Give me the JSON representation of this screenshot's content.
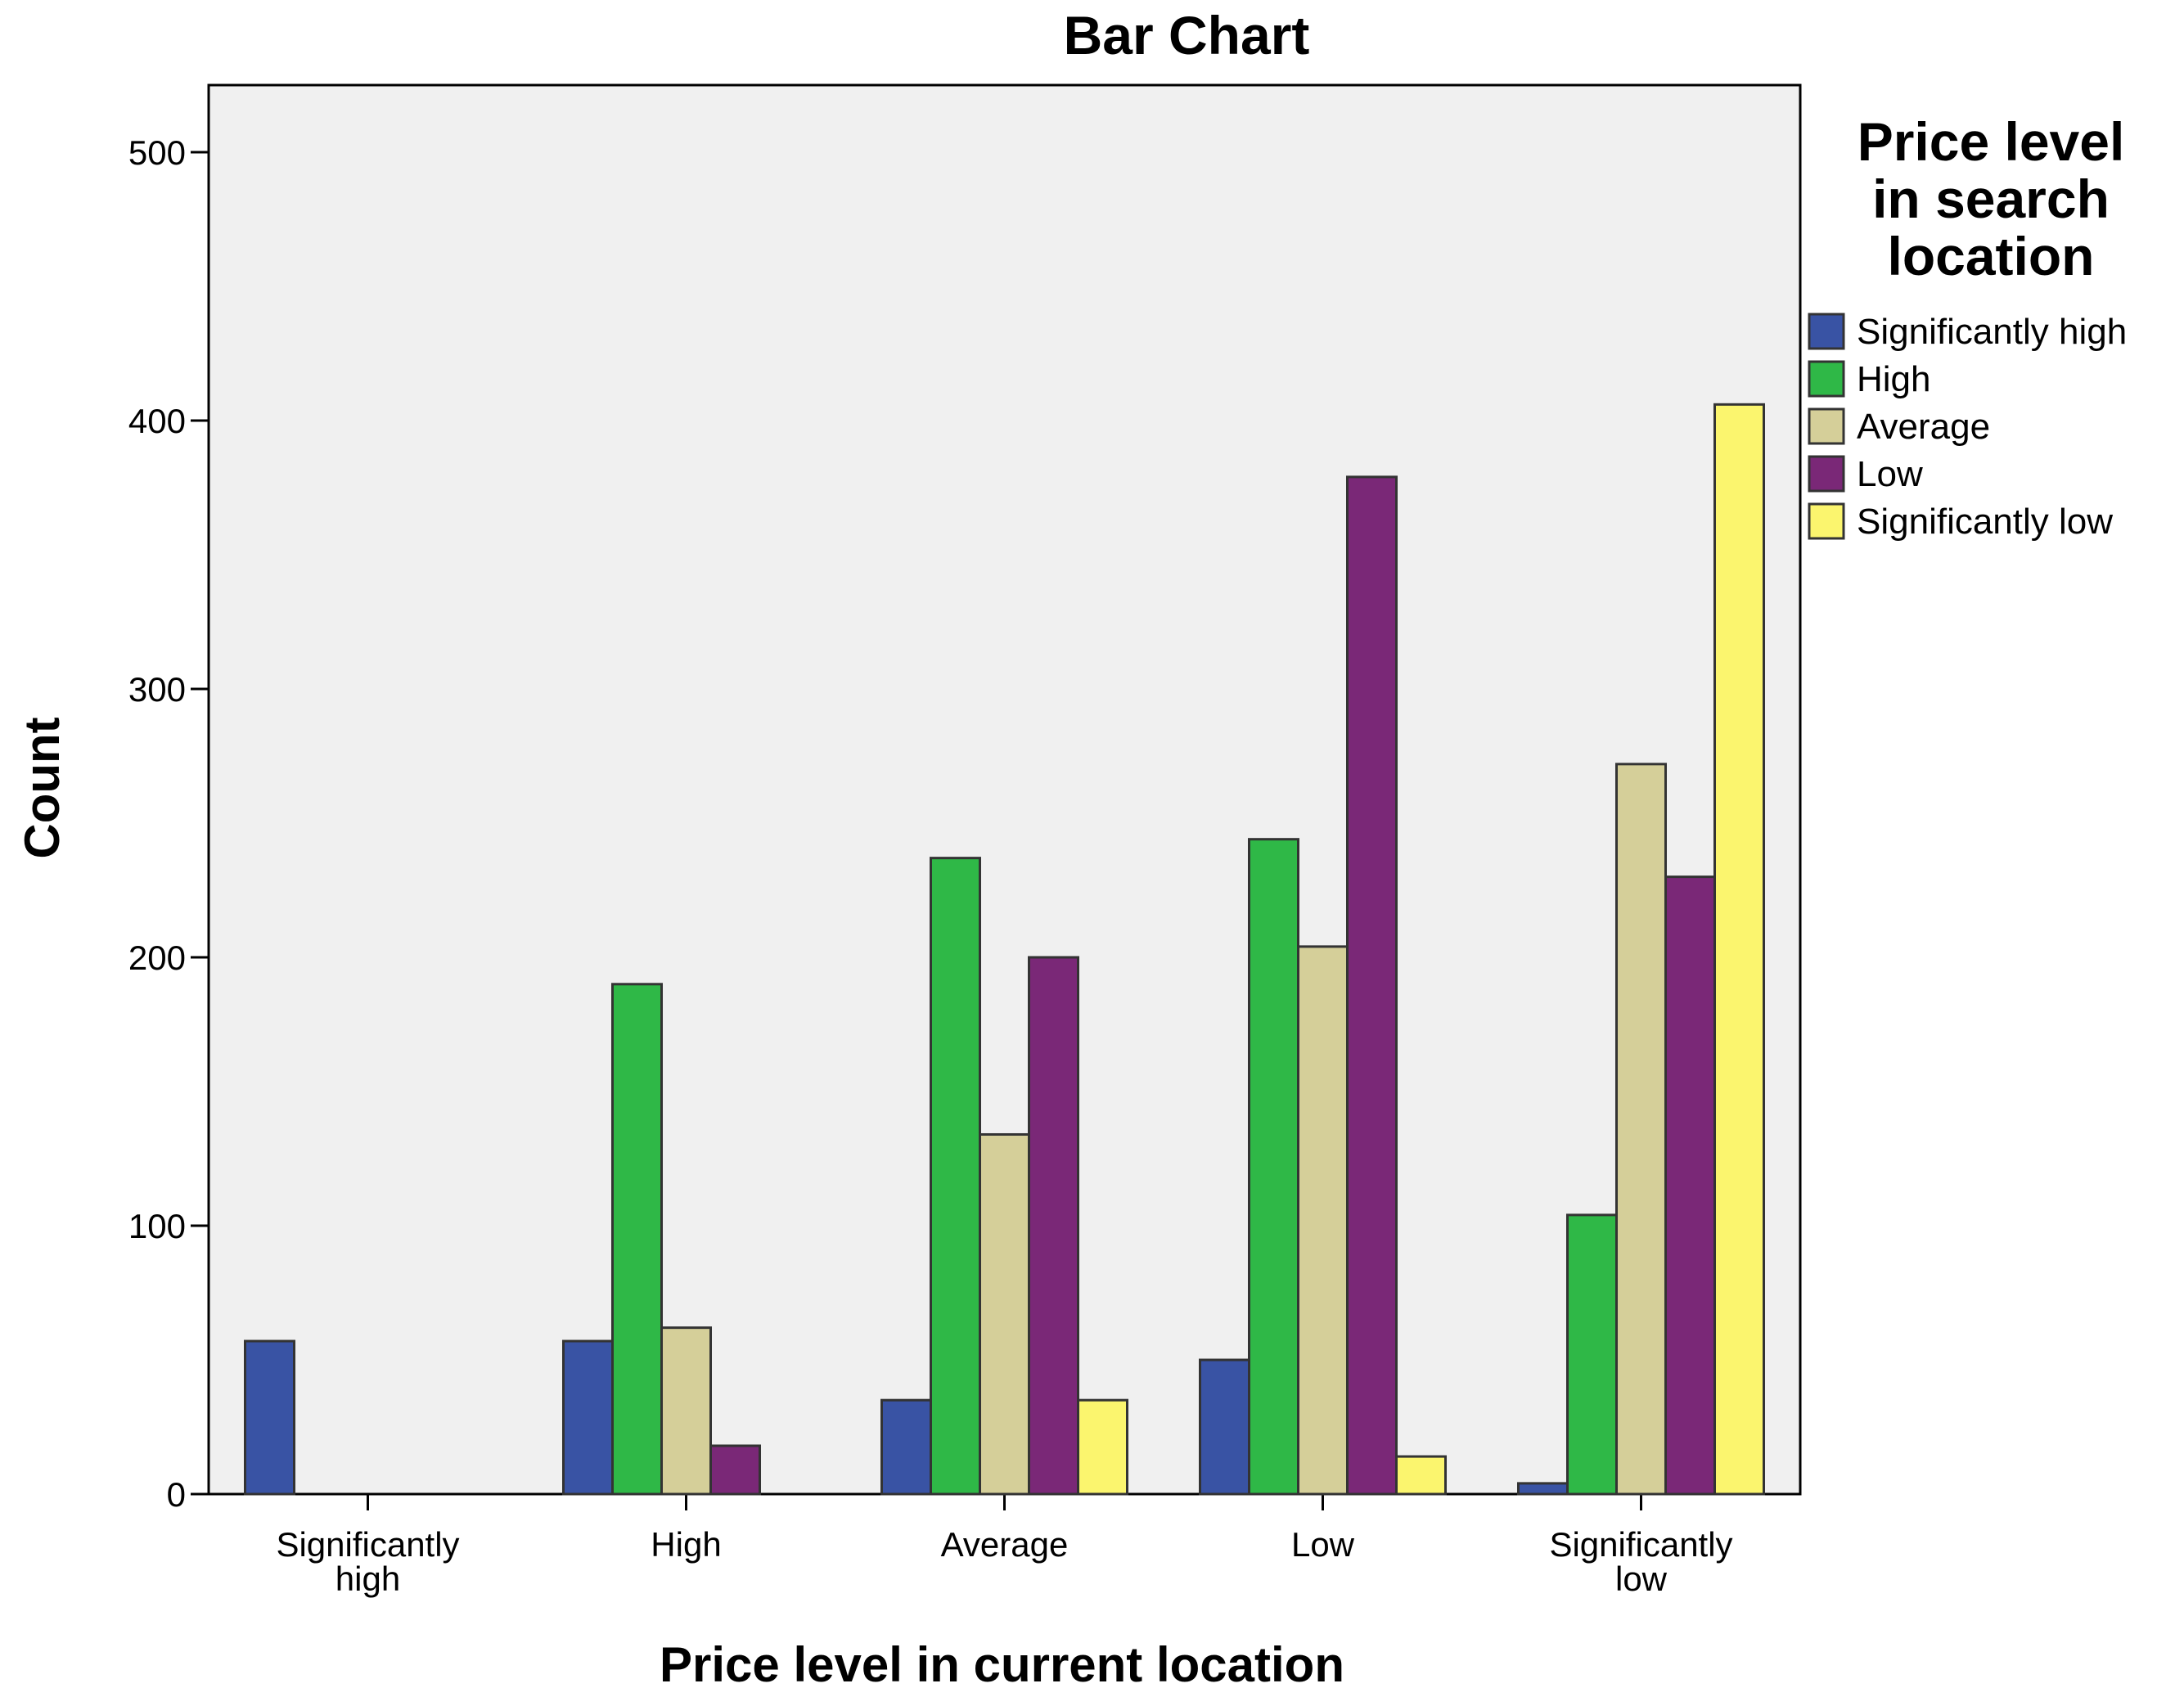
{
  "chart_data": {
    "type": "bar",
    "title": "Bar Chart",
    "xlabel": "Price level in current location",
    "ylabel": "Count",
    "ylim": [
      0,
      525
    ],
    "yticks": [
      0,
      100,
      200,
      300,
      400,
      500
    ],
    "grid": false,
    "legend_title": "Price level in search location",
    "legend_title_lines": [
      "Price level",
      "in search",
      "location"
    ],
    "legend_position": "right",
    "categories": [
      "Significantly high",
      "High",
      "Average",
      "Low",
      "Significantly low"
    ],
    "category_label_lines": [
      [
        "Significantly",
        "high"
      ],
      [
        "High"
      ],
      [
        "Average"
      ],
      [
        "Low"
      ],
      [
        "Significantly",
        "low"
      ]
    ],
    "series": [
      {
        "name": "Significantly high",
        "color": "#3953a4",
        "values": [
          57,
          57,
          35,
          50,
          4
        ]
      },
      {
        "name": "High",
        "color": "#2fb847",
        "values": [
          0,
          190,
          237,
          244,
          104
        ]
      },
      {
        "name": "Average",
        "color": "#d5cf99",
        "values": [
          0,
          62,
          134,
          204,
          272
        ]
      },
      {
        "name": "Low",
        "color": "#7a2877",
        "values": [
          0,
          18,
          200,
          379,
          230
        ]
      },
      {
        "name": "Significantly low",
        "color": "#fbf56e",
        "values": [
          0,
          0,
          35,
          14,
          406
        ]
      }
    ],
    "plot_background": "#f0f0f0",
    "bar_outline": "#333333"
  }
}
